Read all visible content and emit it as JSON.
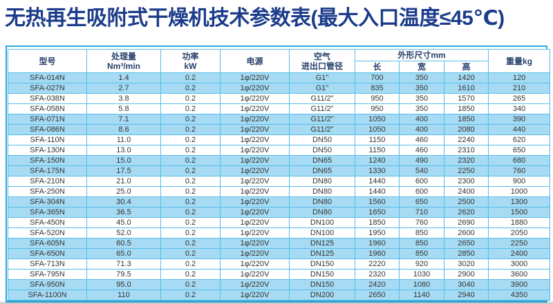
{
  "title": "无热再生吸附式干燥机技术参数表(最大入口温度≤45℃)",
  "colors": {
    "title_navy": "#1b3c8a",
    "header_navy": "#27406b",
    "accent_blue": "#2aa7de",
    "grid_blue": "#55bde9",
    "stripe_blue": "#a6dbf3",
    "data_text": "#333333"
  },
  "table": {
    "header": {
      "model": "型号",
      "capacity_name": "处理量",
      "capacity_unit": "Nm³/min",
      "power_name": "功率",
      "power_unit": "kW",
      "supply": "电源",
      "pipe_line1": "空气",
      "pipe_line2": "进出口管径",
      "dims_group": "外形尺寸mm",
      "dim_length": "长",
      "dim_width": "宽",
      "dim_height": "高",
      "weight": "重量kg"
    },
    "rows": [
      {
        "model": "SFA-014N",
        "capacity": "1.4",
        "power": "0.2",
        "supply": "1φ/220V",
        "pipe": "G1\"",
        "length": "700",
        "width": "350",
        "height": "1420",
        "weight": "120"
      },
      {
        "model": "SFA-027N",
        "capacity": "2.7",
        "power": "0.2",
        "supply": "1φ/220V",
        "pipe": "G1\"",
        "length": "835",
        "width": "350",
        "height": "1610",
        "weight": "210"
      },
      {
        "model": "SFA-038N",
        "capacity": "3.8",
        "power": "0.2",
        "supply": "1φ/220V",
        "pipe": "G11/2\"",
        "length": "950",
        "width": "350",
        "height": "1570",
        "weight": "265"
      },
      {
        "model": "SFA-058N",
        "capacity": "5.8",
        "power": "0.2",
        "supply": "1φ/220V",
        "pipe": "G11/2\"",
        "length": "950",
        "width": "350",
        "height": "1850",
        "weight": "340"
      },
      {
        "model": "SFA-071N",
        "capacity": "7.1",
        "power": "0.2",
        "supply": "1φ/220V",
        "pipe": "G11/2\"",
        "length": "1050",
        "width": "400",
        "height": "1850",
        "weight": "390"
      },
      {
        "model": "SFA-086N",
        "capacity": "8.6",
        "power": "0.2",
        "supply": "1φ/220V",
        "pipe": "G11/2\"",
        "length": "1050",
        "width": "400",
        "height": "2080",
        "weight": "440"
      },
      {
        "model": "SFA-110N",
        "capacity": "11.0",
        "power": "0.2",
        "supply": "1φ/220V",
        "pipe": "DN50",
        "length": "1150",
        "width": "460",
        "height": "2240",
        "weight": "620"
      },
      {
        "model": "SFA-130N",
        "capacity": "13.0",
        "power": "0.2",
        "supply": "1φ/220V",
        "pipe": "DN50",
        "length": "1150",
        "width": "460",
        "height": "2310",
        "weight": "650"
      },
      {
        "model": "SFA-150N",
        "capacity": "15.0",
        "power": "0.2",
        "supply": "1φ/220V",
        "pipe": "DN65",
        "length": "1240",
        "width": "490",
        "height": "2320",
        "weight": "680"
      },
      {
        "model": "SFA-175N",
        "capacity": "17.5",
        "power": "0.2",
        "supply": "1φ/220V",
        "pipe": "DN65",
        "length": "1330",
        "width": "540",
        "height": "2250",
        "weight": "760"
      },
      {
        "model": "SFA-210N",
        "capacity": "21.0",
        "power": "0.2",
        "supply": "1φ/220V",
        "pipe": "DN80",
        "length": "1440",
        "width": "600",
        "height": "2300",
        "weight": "900"
      },
      {
        "model": "SFA-250N",
        "capacity": "25.0",
        "power": "0.2",
        "supply": "1φ/220V",
        "pipe": "DN80",
        "length": "1440",
        "width": "600",
        "height": "2400",
        "weight": "1000"
      },
      {
        "model": "SFA-304N",
        "capacity": "30.4",
        "power": "0.2",
        "supply": "1φ/220V",
        "pipe": "DN80",
        "length": "1560",
        "width": "650",
        "height": "2500",
        "weight": "1300"
      },
      {
        "model": "SFA-365N",
        "capacity": "36.5",
        "power": "0.2",
        "supply": "1φ/220V",
        "pipe": "DN80",
        "length": "1650",
        "width": "710",
        "height": "2620",
        "weight": "1500"
      },
      {
        "model": "SFA-450N",
        "capacity": "45.0",
        "power": "0.2",
        "supply": "1φ/220V",
        "pipe": "DN100",
        "length": "1850",
        "width": "760",
        "height": "2690",
        "weight": "1880"
      },
      {
        "model": "SFA-520N",
        "capacity": "52.0",
        "power": "0.2",
        "supply": "1φ/220V",
        "pipe": "DN100",
        "length": "1950",
        "width": "850",
        "height": "2600",
        "weight": "2050"
      },
      {
        "model": "SFA-605N",
        "capacity": "60.5",
        "power": "0.2",
        "supply": "1φ/220V",
        "pipe": "DN125",
        "length": "1960",
        "width": "850",
        "height": "2650",
        "weight": "2250"
      },
      {
        "model": "SFA-650N",
        "capacity": "65.0",
        "power": "0.2",
        "supply": "1φ/220V",
        "pipe": "DN125",
        "length": "1960",
        "width": "850",
        "height": "2850",
        "weight": "2400"
      },
      {
        "model": "SFA-713N",
        "capacity": "71.3",
        "power": "0.2",
        "supply": "1φ/220V",
        "pipe": "DN150",
        "length": "2220",
        "width": "920",
        "height": "3020",
        "weight": "3000"
      },
      {
        "model": "SFA-795N",
        "capacity": "79.5",
        "power": "0.2",
        "supply": "1φ/220V",
        "pipe": "DN150",
        "length": "2320",
        "width": "1030",
        "height": "2900",
        "weight": "3600"
      },
      {
        "model": "SFA-950N",
        "capacity": "95.0",
        "power": "0.2",
        "supply": "1φ/220V",
        "pipe": "DN150",
        "length": "2420",
        "width": "1080",
        "height": "3040",
        "weight": "3900"
      },
      {
        "model": "SFA-1100N",
        "capacity": "110",
        "power": "0.2",
        "supply": "1φ/220V",
        "pipe": "DN200",
        "length": "2650",
        "width": "1140",
        "height": "2940",
        "weight": "4350"
      }
    ]
  }
}
